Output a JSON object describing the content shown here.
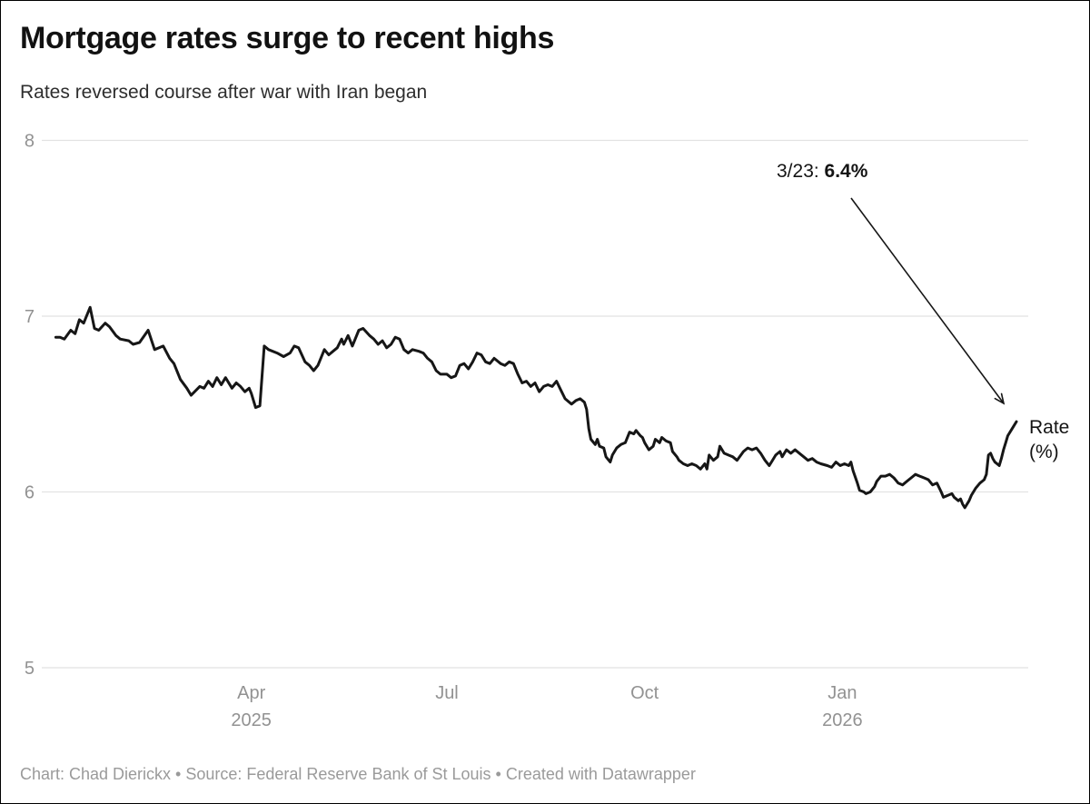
{
  "header": {
    "title": "Mortgage rates surge to recent highs",
    "subtitle": "Rates reversed course after war with Iran began"
  },
  "annotation": {
    "prefix": "3/23: ",
    "value": "6.4%"
  },
  "series_label": {
    "line1": "Rate",
    "line2": "(%)"
  },
  "footer": {
    "byline": "Chart: Chad Dierickx • Source: Federal Reserve Bank of St Louis • Created with Datawrapper"
  },
  "colors": {
    "line": "#161616",
    "grid": "#e2e2e2",
    "axis_label": "#929292",
    "text": "#141414",
    "footer_text": "#9a9a9a"
  },
  "chart_data": {
    "type": "line",
    "title": "Mortgage rates surge to recent highs",
    "subtitle": "Rates reversed course after war with Iran began",
    "ylabel": "Rate (%)",
    "ylim": [
      5,
      8
    ],
    "y_ticks": [
      8,
      7,
      6,
      5
    ],
    "grid": "horizontal",
    "legend_position": "end-of-line",
    "x_range": [
      "2024-12-30",
      "2026-03-23"
    ],
    "x_ticks": [
      {
        "date": "2025-04-01",
        "label": "Apr",
        "sublabel": "2025"
      },
      {
        "date": "2025-07-01",
        "label": "Jul",
        "sublabel": ""
      },
      {
        "date": "2025-10-01",
        "label": "Oct",
        "sublabel": ""
      },
      {
        "date": "2026-01-01",
        "label": "Jan",
        "sublabel": "2026"
      }
    ],
    "annotation": {
      "text": "3/23: 6.4%",
      "point_date": "2026-03-23",
      "point_value": 6.4
    },
    "series": [
      {
        "name": "Rate (%)",
        "points": [
          [
            "2024-12-31",
            6.88
          ],
          [
            "2025-01-02",
            6.88
          ],
          [
            "2025-01-04",
            6.87
          ],
          [
            "2025-01-07",
            6.92
          ],
          [
            "2025-01-09",
            6.9
          ],
          [
            "2025-01-11",
            6.98
          ],
          [
            "2025-01-13",
            6.96
          ],
          [
            "2025-01-16",
            7.05
          ],
          [
            "2025-01-18",
            6.93
          ],
          [
            "2025-01-20",
            6.92
          ],
          [
            "2025-01-23",
            6.96
          ],
          [
            "2025-01-25",
            6.94
          ],
          [
            "2025-01-28",
            6.89
          ],
          [
            "2025-01-30",
            6.87
          ],
          [
            "2025-02-03",
            6.86
          ],
          [
            "2025-02-05",
            6.84
          ],
          [
            "2025-02-08",
            6.85
          ],
          [
            "2025-02-12",
            6.92
          ],
          [
            "2025-02-15",
            6.81
          ],
          [
            "2025-02-19",
            6.83
          ],
          [
            "2025-02-22",
            6.76
          ],
          [
            "2025-02-24",
            6.73
          ],
          [
            "2025-02-27",
            6.64
          ],
          [
            "2025-03-02",
            6.59
          ],
          [
            "2025-03-04",
            6.55
          ],
          [
            "2025-03-08",
            6.6
          ],
          [
            "2025-03-10",
            6.59
          ],
          [
            "2025-03-12",
            6.63
          ],
          [
            "2025-03-14",
            6.6
          ],
          [
            "2025-03-16",
            6.65
          ],
          [
            "2025-03-18",
            6.61
          ],
          [
            "2025-03-20",
            6.65
          ],
          [
            "2025-03-23",
            6.59
          ],
          [
            "2025-03-25",
            6.62
          ],
          [
            "2025-03-27",
            6.6
          ],
          [
            "2025-03-29",
            6.57
          ],
          [
            "2025-03-31",
            6.59
          ],
          [
            "2025-04-01",
            6.56
          ],
          [
            "2025-04-03",
            6.48
          ],
          [
            "2025-04-05",
            6.49
          ],
          [
            "2025-04-07",
            6.83
          ],
          [
            "2025-04-09",
            6.81
          ],
          [
            "2025-04-13",
            6.79
          ],
          [
            "2025-04-16",
            6.77
          ],
          [
            "2025-04-19",
            6.79
          ],
          [
            "2025-04-21",
            6.83
          ],
          [
            "2025-04-23",
            6.82
          ],
          [
            "2025-04-26",
            6.74
          ],
          [
            "2025-04-28",
            6.72
          ],
          [
            "2025-04-30",
            6.69
          ],
          [
            "2025-05-02",
            6.72
          ],
          [
            "2025-05-05",
            6.81
          ],
          [
            "2025-05-07",
            6.78
          ],
          [
            "2025-05-09",
            6.8
          ],
          [
            "2025-05-11",
            6.82
          ],
          [
            "2025-05-13",
            6.87
          ],
          [
            "2025-05-14",
            6.84
          ],
          [
            "2025-05-16",
            6.89
          ],
          [
            "2025-05-18",
            6.83
          ],
          [
            "2025-05-21",
            6.92
          ],
          [
            "2025-05-23",
            6.93
          ],
          [
            "2025-05-26",
            6.89
          ],
          [
            "2025-05-28",
            6.87
          ],
          [
            "2025-05-30",
            6.84
          ],
          [
            "2025-06-01",
            6.86
          ],
          [
            "2025-06-03",
            6.82
          ],
          [
            "2025-06-05",
            6.84
          ],
          [
            "2025-06-07",
            6.88
          ],
          [
            "2025-06-09",
            6.87
          ],
          [
            "2025-06-11",
            6.81
          ],
          [
            "2025-06-13",
            6.79
          ],
          [
            "2025-06-15",
            6.81
          ],
          [
            "2025-06-18",
            6.8
          ],
          [
            "2025-06-20",
            6.79
          ],
          [
            "2025-06-22",
            6.76
          ],
          [
            "2025-06-24",
            6.74
          ],
          [
            "2025-06-26",
            6.69
          ],
          [
            "2025-06-28",
            6.67
          ],
          [
            "2025-07-01",
            6.67
          ],
          [
            "2025-07-03",
            6.65
          ],
          [
            "2025-07-05",
            6.66
          ],
          [
            "2025-07-07",
            6.72
          ],
          [
            "2025-07-09",
            6.73
          ],
          [
            "2025-07-11",
            6.7
          ],
          [
            "2025-07-13",
            6.74
          ],
          [
            "2025-07-15",
            6.79
          ],
          [
            "2025-07-17",
            6.78
          ],
          [
            "2025-07-19",
            6.74
          ],
          [
            "2025-07-21",
            6.73
          ],
          [
            "2025-07-23",
            6.76
          ],
          [
            "2025-07-26",
            6.73
          ],
          [
            "2025-07-28",
            6.72
          ],
          [
            "2025-07-30",
            6.74
          ],
          [
            "2025-08-01",
            6.73
          ],
          [
            "2025-08-03",
            6.67
          ],
          [
            "2025-08-05",
            6.62
          ],
          [
            "2025-08-07",
            6.63
          ],
          [
            "2025-08-09",
            6.6
          ],
          [
            "2025-08-11",
            6.62
          ],
          [
            "2025-08-13",
            6.57
          ],
          [
            "2025-08-15",
            6.6
          ],
          [
            "2025-08-17",
            6.61
          ],
          [
            "2025-08-19",
            6.6
          ],
          [
            "2025-08-21",
            6.63
          ],
          [
            "2025-08-23",
            6.58
          ],
          [
            "2025-08-25",
            6.53
          ],
          [
            "2025-08-28",
            6.5
          ],
          [
            "2025-08-30",
            6.52
          ],
          [
            "2025-09-01",
            6.53
          ],
          [
            "2025-09-03",
            6.51
          ],
          [
            "2025-09-04",
            6.47
          ],
          [
            "2025-09-05",
            6.36
          ],
          [
            "2025-09-06",
            6.3
          ],
          [
            "2025-09-08",
            6.27
          ],
          [
            "2025-09-09",
            6.3
          ],
          [
            "2025-09-10",
            6.26
          ],
          [
            "2025-09-12",
            6.25
          ],
          [
            "2025-09-13",
            6.2
          ],
          [
            "2025-09-15",
            6.17
          ],
          [
            "2025-09-16",
            6.21
          ],
          [
            "2025-09-18",
            6.25
          ],
          [
            "2025-09-20",
            6.27
          ],
          [
            "2025-09-22",
            6.28
          ],
          [
            "2025-09-24",
            6.34
          ],
          [
            "2025-09-26",
            6.33
          ],
          [
            "2025-09-27",
            6.35
          ],
          [
            "2025-09-29",
            6.32
          ],
          [
            "2025-09-30",
            6.31
          ],
          [
            "2025-10-01",
            6.28
          ],
          [
            "2025-10-03",
            6.24
          ],
          [
            "2025-10-05",
            6.26
          ],
          [
            "2025-10-06",
            6.3
          ],
          [
            "2025-10-08",
            6.28
          ],
          [
            "2025-10-09",
            6.31
          ],
          [
            "2025-10-11",
            6.29
          ],
          [
            "2025-10-13",
            6.28
          ],
          [
            "2025-10-14",
            6.23
          ],
          [
            "2025-10-16",
            6.2
          ],
          [
            "2025-10-17",
            6.18
          ],
          [
            "2025-10-19",
            6.16
          ],
          [
            "2025-10-21",
            6.15
          ],
          [
            "2025-10-23",
            6.16
          ],
          [
            "2025-10-25",
            6.15
          ],
          [
            "2025-10-27",
            6.13
          ],
          [
            "2025-10-29",
            6.16
          ],
          [
            "2025-10-30",
            6.13
          ],
          [
            "2025-10-31",
            6.21
          ],
          [
            "2025-11-02",
            6.18
          ],
          [
            "2025-11-04",
            6.2
          ],
          [
            "2025-11-05",
            6.26
          ],
          [
            "2025-11-07",
            6.22
          ],
          [
            "2025-11-09",
            6.21
          ],
          [
            "2025-11-11",
            6.2
          ],
          [
            "2025-11-13",
            6.18
          ],
          [
            "2025-11-16",
            6.23
          ],
          [
            "2025-11-18",
            6.25
          ],
          [
            "2025-11-20",
            6.24
          ],
          [
            "2025-11-22",
            6.25
          ],
          [
            "2025-11-24",
            6.22
          ],
          [
            "2025-11-26",
            6.18
          ],
          [
            "2025-11-28",
            6.15
          ],
          [
            "2025-11-29",
            6.17
          ],
          [
            "2025-12-01",
            6.21
          ],
          [
            "2025-12-03",
            6.23
          ],
          [
            "2025-12-04",
            6.2
          ],
          [
            "2025-12-06",
            6.24
          ],
          [
            "2025-12-08",
            6.22
          ],
          [
            "2025-12-10",
            6.24
          ],
          [
            "2025-12-12",
            6.22
          ],
          [
            "2025-12-14",
            6.2
          ],
          [
            "2025-12-16",
            6.18
          ],
          [
            "2025-12-18",
            6.19
          ],
          [
            "2025-12-20",
            6.17
          ],
          [
            "2025-12-22",
            6.16
          ],
          [
            "2025-12-25",
            6.15
          ],
          [
            "2025-12-27",
            6.14
          ],
          [
            "2025-12-29",
            6.17
          ],
          [
            "2025-12-31",
            6.15
          ],
          [
            "2026-01-02",
            6.16
          ],
          [
            "2026-01-04",
            6.15
          ],
          [
            "2026-01-05",
            6.17
          ],
          [
            "2026-01-06",
            6.12
          ],
          [
            "2026-01-08",
            6.05
          ],
          [
            "2026-01-09",
            6.01
          ],
          [
            "2026-01-11",
            6.0
          ],
          [
            "2026-01-12",
            5.99
          ],
          [
            "2026-01-14",
            6.0
          ],
          [
            "2026-01-16",
            6.03
          ],
          [
            "2026-01-17",
            6.06
          ],
          [
            "2026-01-19",
            6.09
          ],
          [
            "2026-01-21",
            6.09
          ],
          [
            "2026-01-23",
            6.1
          ],
          [
            "2026-01-25",
            6.08
          ],
          [
            "2026-01-27",
            6.05
          ],
          [
            "2026-01-29",
            6.04
          ],
          [
            "2026-01-31",
            6.06
          ],
          [
            "2026-02-02",
            6.08
          ],
          [
            "2026-02-04",
            6.1
          ],
          [
            "2026-02-06",
            6.09
          ],
          [
            "2026-02-08",
            6.08
          ],
          [
            "2026-02-10",
            6.07
          ],
          [
            "2026-02-12",
            6.04
          ],
          [
            "2026-02-14",
            6.05
          ],
          [
            "2026-02-16",
            6.0
          ],
          [
            "2026-02-17",
            5.97
          ],
          [
            "2026-02-19",
            5.98
          ],
          [
            "2026-02-21",
            5.99
          ],
          [
            "2026-02-22",
            5.97
          ],
          [
            "2026-02-24",
            5.95
          ],
          [
            "2026-02-25",
            5.96
          ],
          [
            "2026-02-26",
            5.93
          ],
          [
            "2026-02-27",
            5.91
          ],
          [
            "2026-03-01",
            5.95
          ],
          [
            "2026-03-02",
            5.98
          ],
          [
            "2026-03-04",
            6.02
          ],
          [
            "2026-03-06",
            6.05
          ],
          [
            "2026-03-08",
            6.07
          ],
          [
            "2026-03-09",
            6.1
          ],
          [
            "2026-03-10",
            6.21
          ],
          [
            "2026-03-11",
            6.22
          ],
          [
            "2026-03-12",
            6.19
          ],
          [
            "2026-03-13",
            6.17
          ],
          [
            "2026-03-15",
            6.15
          ],
          [
            "2026-03-16",
            6.19
          ],
          [
            "2026-03-17",
            6.24
          ],
          [
            "2026-03-18",
            6.28
          ],
          [
            "2026-03-19",
            6.32
          ],
          [
            "2026-03-21",
            6.36
          ],
          [
            "2026-03-23",
            6.4
          ]
        ]
      }
    ]
  }
}
